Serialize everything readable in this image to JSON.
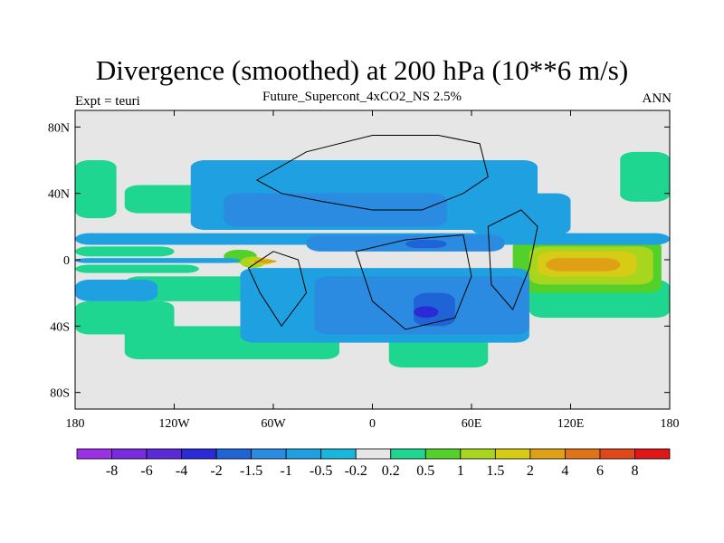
{
  "chart_data": {
    "type": "heatmap",
    "title": "Divergence (smoothed) at 200 hPa (10**6 m/s)",
    "subtitle": "Future_Supercont_4xCO2_NS 2.5%",
    "left_label": "Expt = teuri",
    "right_label": "ANN",
    "xlim": [
      -180,
      180
    ],
    "ylim": [
      -90,
      90
    ],
    "x_ticks": [
      {
        "value": -180,
        "label": "180"
      },
      {
        "value": -120,
        "label": "120W"
      },
      {
        "value": -60,
        "label": "60W"
      },
      {
        "value": 0,
        "label": "0"
      },
      {
        "value": 60,
        "label": "60E"
      },
      {
        "value": 120,
        "label": "120E"
      },
      {
        "value": 180,
        "label": "180"
      }
    ],
    "y_ticks": [
      {
        "value": 80,
        "label": "80N"
      },
      {
        "value": 40,
        "label": "40N"
      },
      {
        "value": 0,
        "label": "0"
      },
      {
        "value": -40,
        "label": "40S"
      },
      {
        "value": -80,
        "label": "80S"
      }
    ],
    "background_color": "#e6e6e6",
    "colorbar": {
      "labels": [
        "-8",
        "-6",
        "-4",
        "-2",
        "-1.5",
        "-1",
        "-0.5",
        "-0.2",
        "0.2",
        "0.5",
        "1",
        "1.5",
        "2",
        "4",
        "6",
        "8"
      ],
      "colors": [
        "#9b30e6",
        "#7a2be0",
        "#5a2ad8",
        "#2a2ad6",
        "#1e64d6",
        "#2a8be0",
        "#1fa0e0",
        "#17b6da",
        "#e6e6e6",
        "#1ed690",
        "#53d02a",
        "#a8d61e",
        "#d6cc16",
        "#e0a016",
        "#e07318",
        "#e0481a",
        "#e01616"
      ]
    },
    "regions": [
      {
        "level": 0.5,
        "color": "#1ed690",
        "lon": [
          -180,
          -120
        ],
        "lat": [
          2,
          8
        ]
      },
      {
        "level": 0.5,
        "color": "#1ed690",
        "lon": [
          -180,
          -105
        ],
        "lat": [
          -8,
          -3
        ]
      },
      {
        "level": 0.5,
        "color": "#1ed690",
        "lon": [
          -150,
          -60
        ],
        "lat": [
          -25,
          -10
        ]
      },
      {
        "level": 0.5,
        "color": "#1ed690",
        "lon": [
          -180,
          -120
        ],
        "lat": [
          -45,
          -25
        ]
      },
      {
        "level": 0.5,
        "color": "#1ed690",
        "lon": [
          -150,
          -20
        ],
        "lat": [
          -60,
          -40
        ]
      },
      {
        "level": 0.5,
        "color": "#1ed690",
        "lon": [
          -180,
          -155
        ],
        "lat": [
          25,
          60
        ]
      },
      {
        "level": 0.5,
        "color": "#1ed690",
        "lon": [
          -150,
          -90
        ],
        "lat": [
          28,
          45
        ]
      },
      {
        "level": 0.5,
        "color": "#1ed690",
        "lon": [
          10,
          70
        ],
        "lat": [
          -65,
          -45
        ]
      },
      {
        "level": 0.5,
        "color": "#1ed690",
        "lon": [
          95,
          180
        ],
        "lat": [
          -35,
          -12
        ]
      },
      {
        "level": 0.5,
        "color": "#1ed690",
        "lon": [
          150,
          180
        ],
        "lat": [
          35,
          65
        ]
      },
      {
        "level": 1,
        "color": "#53d02a",
        "lon": [
          -90,
          -70
        ],
        "lat": [
          -2,
          6
        ]
      },
      {
        "level": 1,
        "color": "#53d02a",
        "lon": [
          20,
          60
        ],
        "lat": [
          -25,
          -15
        ]
      },
      {
        "level": 1,
        "color": "#53d02a",
        "lon": [
          -5,
          45
        ],
        "lat": [
          28,
          38
        ]
      },
      {
        "level": 1,
        "color": "#53d02a",
        "lon": [
          85,
          175
        ],
        "lat": [
          -20,
          12
        ]
      },
      {
        "level": 1,
        "color": "#53d02a",
        "lon": [
          -25,
          -5
        ],
        "lat": [
          -40,
          -25
        ]
      },
      {
        "level": 1.5,
        "color": "#a8d61e",
        "lon": [
          -80,
          -65
        ],
        "lat": [
          -5,
          2
        ]
      },
      {
        "level": 1.5,
        "color": "#a8d61e",
        "lon": [
          95,
          170
        ],
        "lat": [
          -15,
          8
        ]
      },
      {
        "level": 2,
        "color": "#d6cc16",
        "lon": [
          -75,
          -60
        ],
        "lat": [
          -3,
          1
        ]
      },
      {
        "level": 2,
        "color": "#d6cc16",
        "lon": [
          100,
          160
        ],
        "lat": [
          -10,
          5
        ]
      },
      {
        "level": 4,
        "color": "#e0a016",
        "lon": [
          -72,
          -58
        ],
        "lat": [
          -2,
          0
        ]
      },
      {
        "level": 4,
        "color": "#e0a016",
        "lon": [
          105,
          150
        ],
        "lat": [
          -7,
          1
        ]
      },
      {
        "level": -0.5,
        "color": "#1fa0e0",
        "lon": [
          -180,
          180
        ],
        "lat": [
          9,
          16
        ]
      },
      {
        "level": -0.5,
        "color": "#1fa0e0",
        "lon": [
          -180,
          -80
        ],
        "lat": [
          -2,
          1
        ]
      },
      {
        "level": -0.5,
        "color": "#1fa0e0",
        "lon": [
          -80,
          95
        ],
        "lat": [
          -50,
          -5
        ]
      },
      {
        "level": -0.5,
        "color": "#1fa0e0",
        "lon": [
          -110,
          100
        ],
        "lat": [
          18,
          60
        ]
      },
      {
        "level": -0.5,
        "color": "#1fa0e0",
        "lon": [
          -180,
          -130
        ],
        "lat": [
          -25,
          -12
        ]
      },
      {
        "level": -0.5,
        "color": "#1fa0e0",
        "lon": [
          60,
          120
        ],
        "lat": [
          15,
          40
        ]
      },
      {
        "level": -1,
        "color": "#2a8be0",
        "lon": [
          -40,
          80
        ],
        "lat": [
          5,
          15
        ]
      },
      {
        "level": -1,
        "color": "#2a8be0",
        "lon": [
          -35,
          95
        ],
        "lat": [
          -45,
          -10
        ]
      },
      {
        "level": -1,
        "color": "#2a8be0",
        "lon": [
          -90,
          45
        ],
        "lat": [
          20,
          40
        ]
      },
      {
        "level": -1.5,
        "color": "#1e64d6",
        "lon": [
          25,
          50
        ],
        "lat": [
          -40,
          -20
        ]
      },
      {
        "level": -1.5,
        "color": "#1e64d6",
        "lon": [
          20,
          45
        ],
        "lat": [
          7,
          12
        ]
      },
      {
        "level": -2,
        "color": "#2a2ad6",
        "lon": [
          25,
          40
        ],
        "lat": [
          -35,
          -28
        ]
      }
    ]
  }
}
